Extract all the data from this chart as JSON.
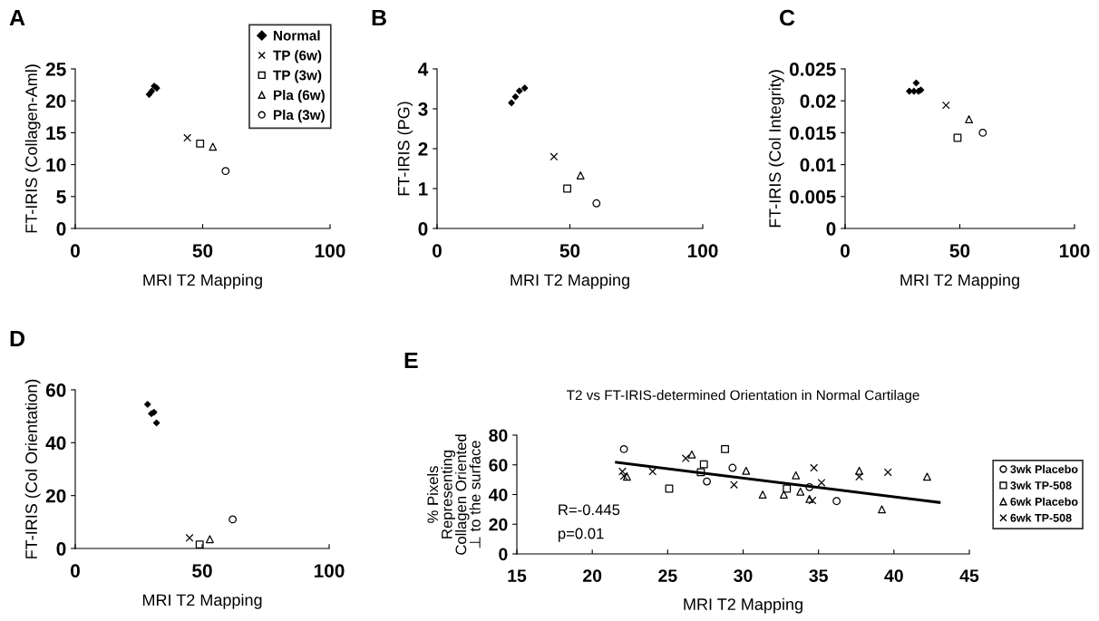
{
  "chart_data": [
    {
      "type": "scatter",
      "annotations": [
        "A"
      ],
      "xlabel": "MRI T2 Mapping",
      "ylabel": "FT-IRIS (Collagen-Aml)",
      "xlim": [
        0,
        100
      ],
      "xticks": [
        0,
        50,
        100
      ],
      "ylim": [
        0,
        25
      ],
      "yticks": [
        0,
        5,
        10,
        15,
        20,
        25
      ],
      "legend": "top right",
      "grid": false,
      "series": [
        {
          "name": "Normal",
          "color": "#000000",
          "marker": "diamond",
          "x": [
            29,
            30,
            31,
            32
          ],
          "values": [
            21,
            21.5,
            22.3,
            22
          ]
        },
        {
          "name": "TP (6w)",
          "color": "#000000",
          "marker": "cross",
          "x": [
            44
          ],
          "values": [
            14.2
          ]
        },
        {
          "name": "TP (3w)",
          "color": "#000000",
          "marker": "square",
          "x": [
            49
          ],
          "values": [
            13.3
          ]
        },
        {
          "name": "Pla (6w)",
          "color": "#000000",
          "marker": "triangle",
          "x": [
            54
          ],
          "values": [
            12.8
          ]
        },
        {
          "name": "Pla (3w)",
          "color": "#000000",
          "marker": "circle",
          "x": [
            59
          ],
          "values": [
            9
          ]
        }
      ]
    },
    {
      "type": "scatter",
      "annotations": [
        "B"
      ],
      "xlabel": "MRI T2 Mapping",
      "ylabel": "FT-IRIS (PG)",
      "xlim": [
        0,
        100
      ],
      "xticks": [
        0,
        50,
        100
      ],
      "ylim": [
        0,
        4
      ],
      "yticks": [
        0,
        1,
        2,
        3,
        4
      ],
      "grid": false,
      "series": [
        {
          "color": "#000000",
          "marker": "diamond",
          "x": [
            28,
            29.5,
            31,
            33
          ],
          "values": [
            3.15,
            3.3,
            3.45,
            3.52
          ]
        },
        {
          "color": "#000000",
          "marker": "cross",
          "x": [
            44
          ],
          "values": [
            1.8
          ]
        },
        {
          "color": "#000000",
          "marker": "square",
          "x": [
            49
          ],
          "values": [
            1.0
          ]
        },
        {
          "color": "#000000",
          "marker": "triangle",
          "x": [
            54
          ],
          "values": [
            1.33
          ]
        },
        {
          "color": "#000000",
          "marker": "circle",
          "x": [
            60
          ],
          "values": [
            0.63
          ]
        }
      ]
    },
    {
      "type": "scatter",
      "annotations": [
        "C"
      ],
      "xlabel": "MRI T2 Mapping",
      "ylabel": "FT-IRIS (Col Integrity)",
      "xlim": [
        0,
        100
      ],
      "xticks": [
        0,
        50,
        100
      ],
      "ylim": [
        0,
        0.025
      ],
      "yticks": [
        0,
        0.005,
        0.01,
        0.015,
        0.02,
        0.025
      ],
      "grid": false,
      "series": [
        {
          "color": "#000000",
          "marker": "diamond",
          "x": [
            28,
            30,
            31,
            32,
            33
          ],
          "values": [
            0.0215,
            0.0215,
            0.0228,
            0.0215,
            0.0217
          ]
        },
        {
          "color": "#000000",
          "marker": "cross",
          "x": [
            44
          ],
          "values": [
            0.0193
          ]
        },
        {
          "color": "#000000",
          "marker": "square",
          "x": [
            49
          ],
          "values": [
            0.0142
          ]
        },
        {
          "color": "#000000",
          "marker": "triangle",
          "x": [
            54
          ],
          "values": [
            0.0171
          ]
        },
        {
          "color": "#000000",
          "marker": "circle",
          "x": [
            60
          ],
          "values": [
            0.015
          ]
        }
      ]
    },
    {
      "type": "scatter",
      "annotations": [
        "D"
      ],
      "xlabel": "MRI T2 Mapping",
      "ylabel": "FT-IRIS (Col Orientation)",
      "xlim": [
        0,
        100
      ],
      "xticks": [
        0,
        50,
        100
      ],
      "ylim": [
        0,
        60
      ],
      "yticks": [
        0,
        20,
        40,
        60
      ],
      "grid": false,
      "series": [
        {
          "color": "#000000",
          "marker": "diamond",
          "x": [
            28.5,
            30,
            31,
            32
          ],
          "values": [
            54.5,
            51,
            51.5,
            47.5
          ]
        },
        {
          "color": "#000000",
          "marker": "cross",
          "x": [
            45
          ],
          "values": [
            4
          ]
        },
        {
          "color": "#000000",
          "marker": "square",
          "x": [
            49
          ],
          "values": [
            1.5
          ]
        },
        {
          "color": "#000000",
          "marker": "triangle",
          "x": [
            53
          ],
          "values": [
            3.5
          ]
        },
        {
          "color": "#000000",
          "marker": "circle",
          "x": [
            62
          ],
          "values": [
            11
          ]
        }
      ]
    },
    {
      "type": "scatter",
      "annotations": [
        "E",
        "R=-0.445",
        "p=0.01"
      ],
      "title": "T2 vs FT-IRIS-determined Orientation in Normal Cartilage",
      "xlabel": "MRI T2 Mapping",
      "ylabel": "% Pixels\nRepresenting\nCollagen Oriented\n⊥ to the surface",
      "xlim": [
        15,
        45
      ],
      "xticks": [
        15,
        20,
        25,
        30,
        35,
        40,
        45
      ],
      "ylim": [
        0,
        80
      ],
      "yticks": [
        0,
        20,
        40,
        60,
        80
      ],
      "legend": "right",
      "grid": false,
      "series": [
        {
          "name": "3wk Placebo",
          "color": "#000000",
          "marker": "circle",
          "x": [
            22.1,
            29.3,
            27.6,
            36.2,
            34.4
          ],
          "values": [
            70.6,
            58,
            48.8,
            35.6,
            45
          ]
        },
        {
          "name": "3wk TP-508",
          "color": "#000000",
          "marker": "square",
          "x": [
            28.8,
            27.4,
            27.2,
            25.1,
            32.9
          ],
          "values": [
            70.6,
            60.4,
            55,
            44,
            44
          ]
        },
        {
          "name": "6wk Placebo",
          "color": "#000000",
          "marker": "triangle",
          "x": [
            22.3,
            26.6,
            30.2,
            31.3,
            32.7,
            33.5,
            33.8,
            34.4,
            37.7,
            39.2,
            42.2
          ],
          "values": [
            52,
            67,
            56,
            40,
            40,
            53,
            42,
            37,
            56,
            30,
            52
          ]
        },
        {
          "name": "6wk TP-508",
          "color": "#000000",
          "marker": "cross",
          "x": [
            22,
            22.1,
            24,
            26.2,
            29.4,
            34.7,
            34.6,
            35.2,
            37.7,
            39.6
          ],
          "values": [
            55.5,
            52.5,
            55.5,
            64.4,
            46.6,
            58,
            36,
            48,
            52,
            55
          ]
        },
        {
          "type": "line",
          "color": "#000000",
          "marker": "none",
          "x": [
            21.6,
            43
          ],
          "values": [
            61.7,
            34.7
          ]
        }
      ]
    }
  ]
}
